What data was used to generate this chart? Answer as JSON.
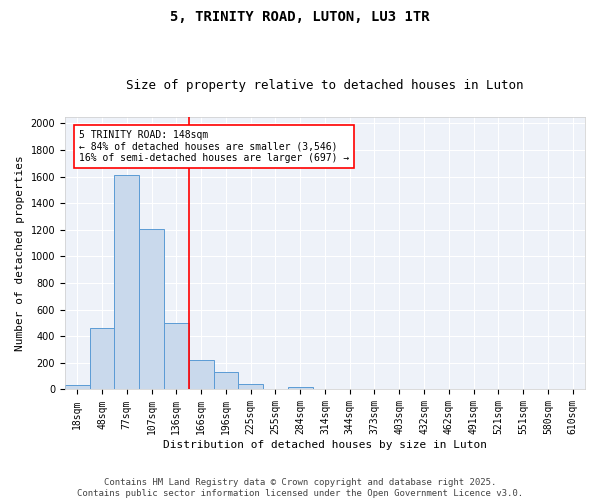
{
  "title": "5, TRINITY ROAD, LUTON, LU3 1TR",
  "subtitle": "Size of property relative to detached houses in Luton",
  "xlabel": "Distribution of detached houses by size in Luton",
  "ylabel": "Number of detached properties",
  "categories": [
    "18sqm",
    "48sqm",
    "77sqm",
    "107sqm",
    "136sqm",
    "166sqm",
    "196sqm",
    "225sqm",
    "255sqm",
    "284sqm",
    "314sqm",
    "344sqm",
    "373sqm",
    "403sqm",
    "432sqm",
    "462sqm",
    "491sqm",
    "521sqm",
    "551sqm",
    "580sqm",
    "610sqm"
  ],
  "values": [
    30,
    460,
    1610,
    1210,
    500,
    220,
    130,
    40,
    0,
    20,
    0,
    0,
    0,
    0,
    0,
    0,
    0,
    0,
    0,
    0,
    0
  ],
  "bar_color": "#c9d9ec",
  "bar_edge_color": "#5b9bd5",
  "vline_color": "red",
  "vline_x": 4.5,
  "annotation_title": "5 TRINITY ROAD: 148sqm",
  "annotation_line1": "← 84% of detached houses are smaller (3,546)",
  "annotation_line2": "16% of semi-detached houses are larger (697) →",
  "annotation_box_color": "white",
  "annotation_box_edge": "red",
  "footer1": "Contains HM Land Registry data © Crown copyright and database right 2025.",
  "footer2": "Contains public sector information licensed under the Open Government Licence v3.0.",
  "ylim": [
    0,
    2050
  ],
  "yticks": [
    0,
    200,
    400,
    600,
    800,
    1000,
    1200,
    1400,
    1600,
    1800,
    2000
  ],
  "bg_color": "#eef2f9",
  "title_fontsize": 10,
  "subtitle_fontsize": 9,
  "axis_label_fontsize": 8,
  "tick_fontsize": 7,
  "annot_fontsize": 7,
  "footer_fontsize": 6.5
}
